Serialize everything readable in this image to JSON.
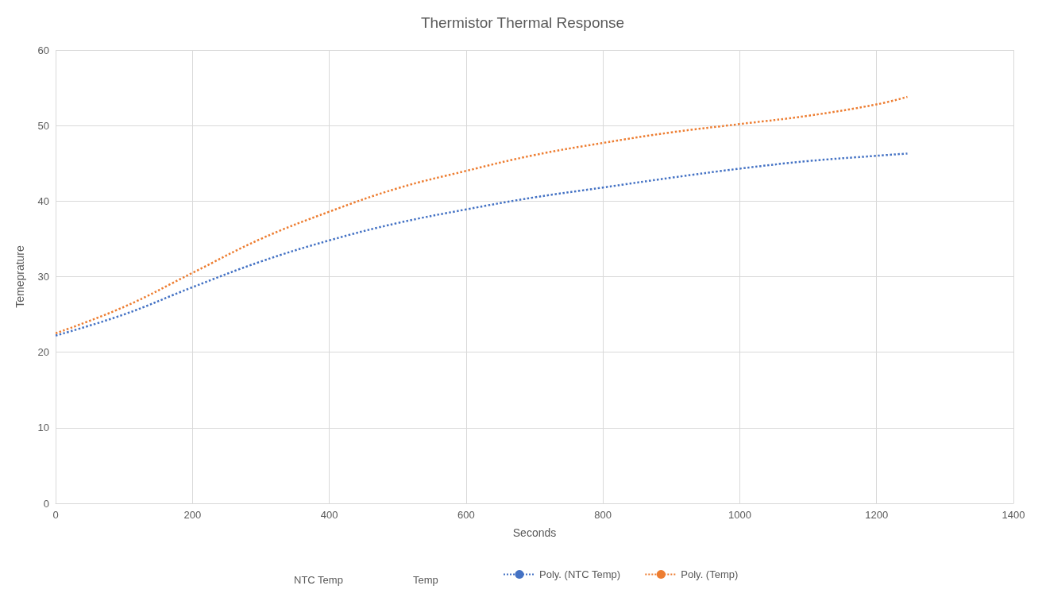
{
  "chart_data": {
    "type": "line",
    "title": "Thermistor Thermal Response",
    "xlabel": "Seconds",
    "ylabel": "Temeprature",
    "xlim": [
      0,
      1400
    ],
    "xticks": [
      0,
      200,
      400,
      600,
      800,
      1000,
      1200,
      1400
    ],
    "ylim": [
      0,
      60
    ],
    "yticks": [
      0,
      10,
      20,
      30,
      40,
      50,
      60
    ],
    "x": [
      0,
      100,
      200,
      300,
      400,
      500,
      600,
      700,
      800,
      900,
      1000,
      1100,
      1200,
      1245
    ],
    "series": [
      {
        "name": "Poly. (NTC Temp)",
        "color": "#4472c4",
        "values": [
          22.2,
          25,
          28.6,
          32,
          34.8,
          37.1,
          38.9,
          40.5,
          41.8,
          43.1,
          44.3,
          45.3,
          46,
          46.3
        ]
      },
      {
        "name": "Poly. (Temp)",
        "color": "#ed7d31",
        "values": [
          22.5,
          26,
          30.5,
          35,
          38.6,
          41.7,
          44,
          46.1,
          47.7,
          49.1,
          50.2,
          51.3,
          52.8,
          53.8
        ]
      }
    ],
    "annotations": [
      "NTC Temp",
      "Temp"
    ],
    "grid": true,
    "legend": "bottom",
    "line_style": "dotted",
    "marker": "none"
  }
}
